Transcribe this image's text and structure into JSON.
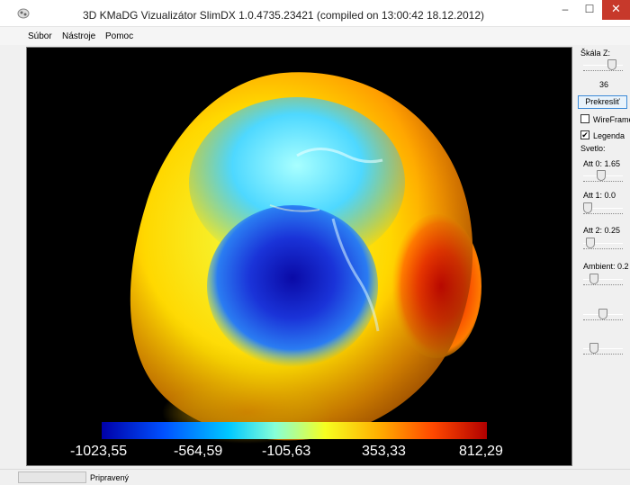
{
  "window": {
    "title": "3D KMaDG Vizualizátor SlimDX 1.0.4735.23421 (compiled on 13:00:42 18.12.2012)",
    "minimize": "–",
    "maximize": "☐",
    "close": "✕"
  },
  "menu": [
    "Súbor",
    "Nástroje",
    "Pomoc"
  ],
  "viewport": {
    "legend": {
      "labels": [
        "-1023,55",
        "-564,59",
        "-105,63",
        "353,33",
        "812,29"
      ]
    }
  },
  "panel": {
    "scale_label": "Škála Z:",
    "scale_value": "36",
    "redraw_button": "Prekresliť",
    "wireframe_label": "WireFrame",
    "wireframe_checked": false,
    "legend_label": "Legenda",
    "legend_checked": true,
    "light_label": "Svetlo:",
    "att0_label": "Att 0: 1.65",
    "att1_label": "Att 1: 0.0",
    "att2_label": "Att 2: 0.25",
    "ambient_label": "Ambient: 0.2",
    "checkmark": "✔"
  },
  "sliders": {
    "scale_level": 0.8,
    "att0_level": 0.45,
    "att1_level": 0.0,
    "att2_level": 0.1,
    "ambient_level": 0.2,
    "extra1_level": 0.5,
    "extra2_level": 0.2
  },
  "status": {
    "text": "Pripravený"
  }
}
